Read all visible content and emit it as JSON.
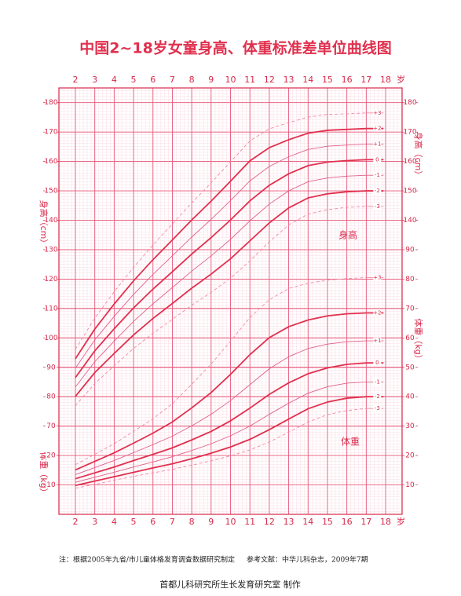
{
  "chart_data": {
    "type": "line",
    "title": "中国2~18岁女童身高、体重标准差单位曲线图",
    "x_unit": "岁",
    "y_label": "身高（cm）",
    "y2_label": "体重（kg）",
    "annotations": {
      "height": "身高",
      "weight": "体重"
    },
    "notes": {
      "source": "注：根据2005年九省/市儿童体格发育调查数据研究制定",
      "reference": "参考文献：中华儿科杂志，2009年7期",
      "maker": "首都儿科研究所生长发育研究室 制作"
    },
    "xlim": [
      1.15,
      18.85
    ],
    "xticks": [
      2,
      3,
      4,
      5,
      6,
      7,
      8,
      9,
      10,
      11,
      12,
      13,
      14,
      15,
      16,
      17,
      18
    ],
    "ylim": [
      40,
      185
    ],
    "yticks": [
      70,
      80,
      90,
      100,
      110,
      120,
      130,
      140,
      150,
      160,
      170,
      180
    ],
    "yticks_right": [
      140,
      150,
      160,
      170,
      180
    ],
    "y2lim": [
      0,
      145
    ],
    "y2ticks": [
      10,
      20,
      30,
      40,
      50,
      60,
      70,
      80,
      90
    ],
    "y2ticks_left": [
      10,
      20
    ],
    "grid": true,
    "x": [
      2,
      3,
      4,
      5,
      6,
      7,
      8,
      9,
      10,
      11,
      12,
      13,
      14,
      15,
      16,
      17
    ],
    "series": [
      {
        "name": "+3",
        "color": "#f08aa4",
        "stroke": "dashed",
        "values": [
          96.1,
          106.7,
          115.7,
          124.0,
          131.6,
          138.7,
          145.9,
          152.7,
          159.9,
          167.0,
          171.1,
          173.2,
          175.1,
          176.0,
          176.2,
          176.5
        ]
      },
      {
        "name": "+2",
        "color": "#e0304e",
        "stroke": "thick",
        "values": [
          92.9,
          103.0,
          111.5,
          119.4,
          126.6,
          133.3,
          140.1,
          146.5,
          153.3,
          160.2,
          164.7,
          167.4,
          169.6,
          170.6,
          170.9,
          171.2
        ]
      },
      {
        "name": "+1",
        "color": "#e0608a",
        "stroke": "thin",
        "values": [
          89.7,
          99.3,
          107.3,
          114.8,
          121.6,
          127.9,
          134.3,
          140.3,
          146.7,
          153.4,
          158.3,
          161.6,
          164.1,
          165.2,
          165.6,
          165.9
        ]
      },
      {
        "name": "0",
        "color": "#e0304e",
        "stroke": "thick",
        "values": [
          86.5,
          95.6,
          103.1,
          110.2,
          116.6,
          122.5,
          128.5,
          134.1,
          140.1,
          146.6,
          151.9,
          155.8,
          158.6,
          159.8,
          160.3,
          160.6
        ]
      },
      {
        "name": "-1",
        "color": "#e0608a",
        "stroke": "thin",
        "values": [
          83.3,
          91.9,
          98.9,
          105.6,
          111.6,
          117.1,
          122.7,
          127.9,
          133.5,
          139.8,
          145.5,
          150.0,
          153.1,
          154.4,
          155.0,
          155.3
        ]
      },
      {
        "name": "-2",
        "color": "#e0304e",
        "stroke": "thick",
        "values": [
          80.1,
          88.2,
          94.7,
          101.0,
          106.6,
          111.7,
          116.9,
          121.7,
          126.9,
          133.0,
          139.1,
          144.2,
          147.6,
          149.0,
          149.7,
          150.0
        ]
      },
      {
        "name": "-3",
        "color": "#f08aa4",
        "stroke": "dashed",
        "values": [
          76.9,
          84.5,
          90.5,
          96.4,
          101.6,
          106.3,
          111.1,
          115.5,
          120.3,
          126.2,
          132.7,
          138.4,
          142.1,
          143.6,
          144.4,
          144.7
        ]
      },
      {
        "name": "+3",
        "color": "#f08aa4",
        "stroke": "dashed",
        "axis": "y2",
        "values": [
          16.9,
          20.4,
          24.0,
          28.2,
          32.5,
          37.6,
          44.2,
          51.1,
          58.9,
          66.9,
          73.0,
          76.8,
          78.6,
          79.6,
          80.2,
          80.5
        ]
      },
      {
        "name": "+2",
        "color": "#e0304e",
        "stroke": "thick",
        "axis": "y2",
        "values": [
          15.1,
          18.0,
          20.9,
          24.2,
          27.6,
          31.4,
          36.2,
          41.4,
          47.6,
          54.3,
          60.1,
          63.8,
          66.1,
          67.5,
          68.2,
          68.5
        ]
      },
      {
        "name": "+1",
        "color": "#e0608a",
        "stroke": "thin",
        "axis": "y2",
        "values": [
          13.5,
          15.9,
          18.3,
          21.0,
          23.7,
          26.6,
          30.1,
          34.0,
          38.7,
          44.1,
          49.5,
          53.6,
          56.4,
          57.9,
          58.7,
          59.0
        ]
      },
      {
        "name": "0",
        "color": "#e0304e",
        "stroke": "thick",
        "axis": "y2",
        "values": [
          12.1,
          14.1,
          16.1,
          18.3,
          20.4,
          22.6,
          25.3,
          28.2,
          31.8,
          36.1,
          40.8,
          44.7,
          47.8,
          49.8,
          51.0,
          51.5
        ]
      },
      {
        "name": "-1",
        "color": "#e0608a",
        "stroke": "thin",
        "axis": "y2",
        "values": [
          10.9,
          12.6,
          14.3,
          16.1,
          17.8,
          19.6,
          21.7,
          24.0,
          26.7,
          30.0,
          34.0,
          37.8,
          41.2,
          43.4,
          44.6,
          45.0
        ]
      },
      {
        "name": "-2",
        "color": "#e0304e",
        "stroke": "thick",
        "axis": "y2",
        "values": [
          9.8,
          11.3,
          12.8,
          14.3,
          15.8,
          17.2,
          18.9,
          20.8,
          22.9,
          25.5,
          28.8,
          32.4,
          35.9,
          38.2,
          39.5,
          40.0
        ]
      },
      {
        "name": "-3",
        "color": "#f08aa4",
        "stroke": "dashed",
        "axis": "y2",
        "values": [
          8.9,
          10.2,
          11.6,
          12.9,
          14.1,
          15.3,
          16.7,
          18.2,
          19.9,
          21.9,
          24.6,
          27.9,
          31.4,
          33.9,
          35.3,
          36.0
        ]
      }
    ]
  }
}
